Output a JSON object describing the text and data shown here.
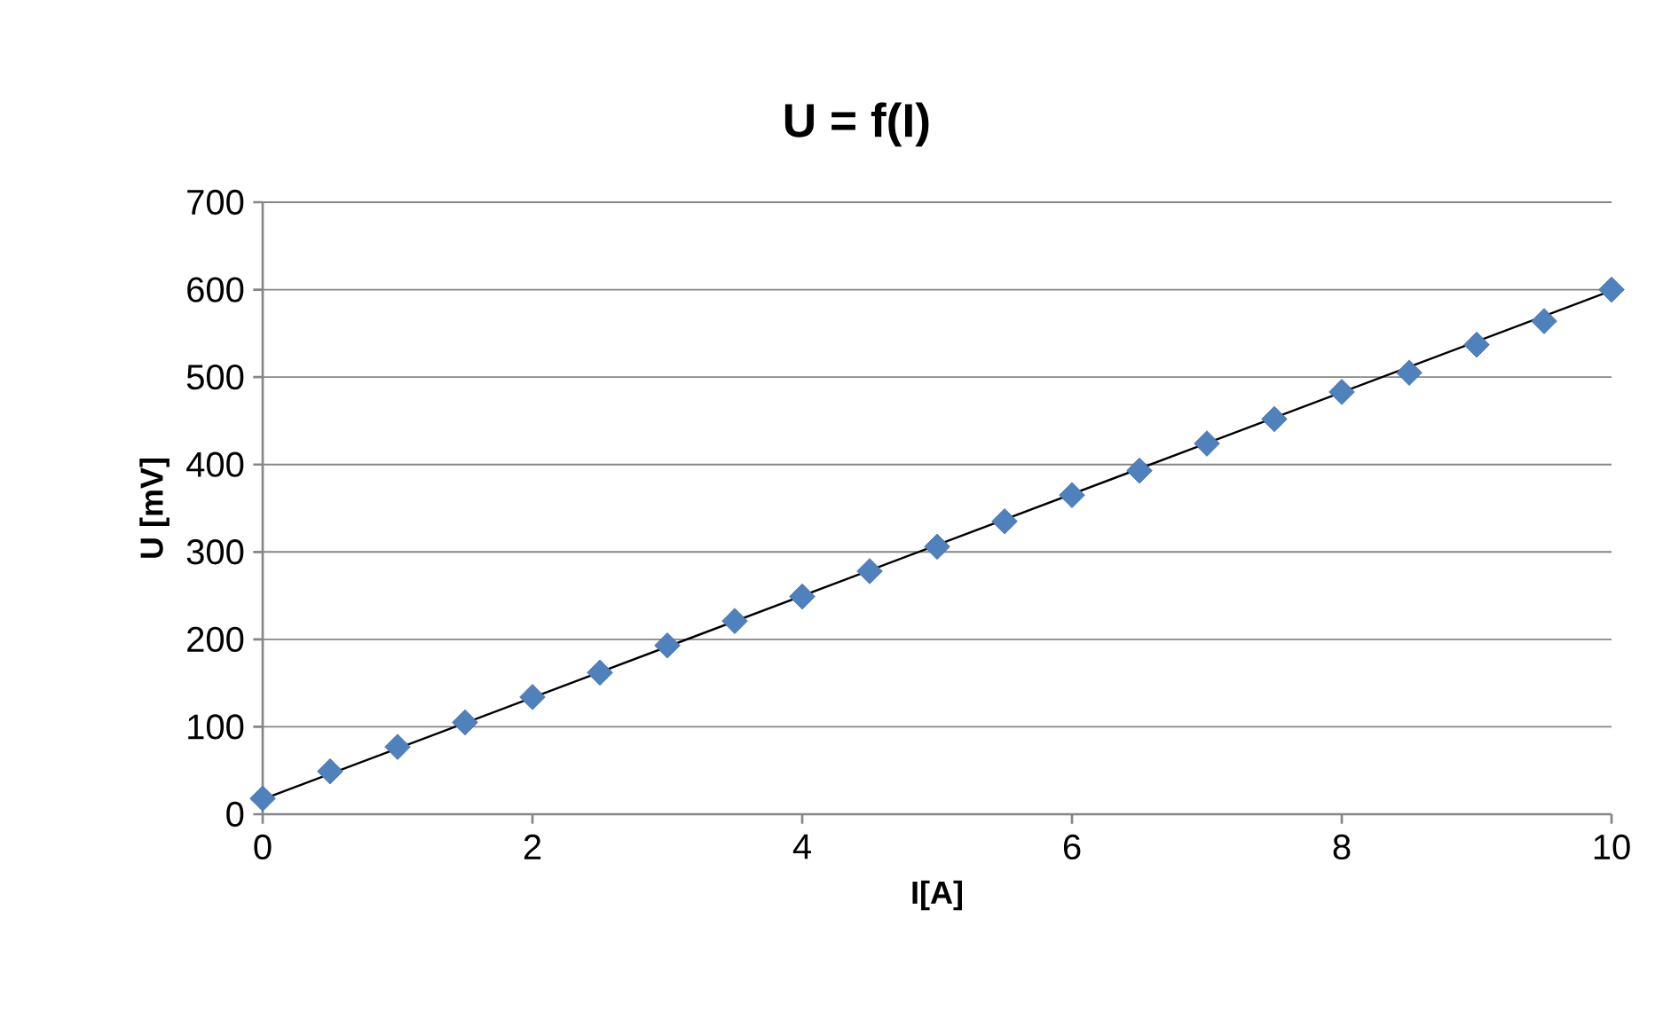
{
  "chart_data": {
    "type": "scatter",
    "title": "U = f(I)",
    "xlabel": "I[A]",
    "ylabel": "U [mV]",
    "series": [
      {
        "type": "scatter",
        "color": "#4f81bd",
        "marker": "diamond",
        "x": [
          0,
          0.5,
          1,
          1.5,
          2,
          2.5,
          3,
          3.5,
          4,
          4.5,
          5,
          5.5,
          6,
          6.5,
          7,
          7.5,
          8,
          8.5,
          9,
          9.5,
          10
        ],
        "values": [
          18,
          49,
          77,
          105,
          134,
          162,
          193,
          221,
          249,
          278,
          306,
          335,
          365,
          393,
          424,
          452,
          483,
          505,
          537,
          564,
          600
        ]
      },
      {
        "type": "line",
        "color": "#000000",
        "marker": "none",
        "line_style": "solid",
        "x": [
          0,
          10
        ],
        "values": [
          17,
          599
        ]
      }
    ],
    "xlim": [
      0,
      10
    ],
    "ylim": [
      0,
      700
    ],
    "xticks": [
      0,
      2,
      4,
      6,
      8,
      10
    ],
    "yticks": [
      0,
      100,
      200,
      300,
      400,
      500,
      600,
      700
    ],
    "grid": "y"
  }
}
